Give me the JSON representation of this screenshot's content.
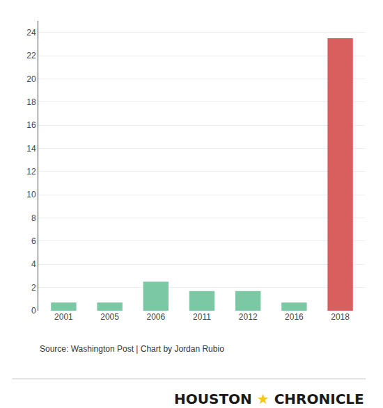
{
  "chart_data": {
    "type": "bar",
    "categories": [
      "2001",
      "2005",
      "2006",
      "2011",
      "2012",
      "2016",
      "2018"
    ],
    "values": [
      0.7,
      0.7,
      2.5,
      1.7,
      1.7,
      0.7,
      23.5
    ],
    "colors": [
      "#7bc8a4",
      "#7bc8a4",
      "#7bc8a4",
      "#7bc8a4",
      "#7bc8a4",
      "#7bc8a4",
      "#d95f5f"
    ],
    "ylim": [
      0,
      25
    ],
    "yticks": [
      0,
      2,
      4,
      6,
      8,
      10,
      12,
      14,
      16,
      18,
      20,
      22,
      24
    ],
    "grid": true,
    "annotations": [
      "Source: Washington Post | Chart by Jordan Rubio",
      "HOUSTON",
      "★",
      "CHRONICLE"
    ]
  }
}
